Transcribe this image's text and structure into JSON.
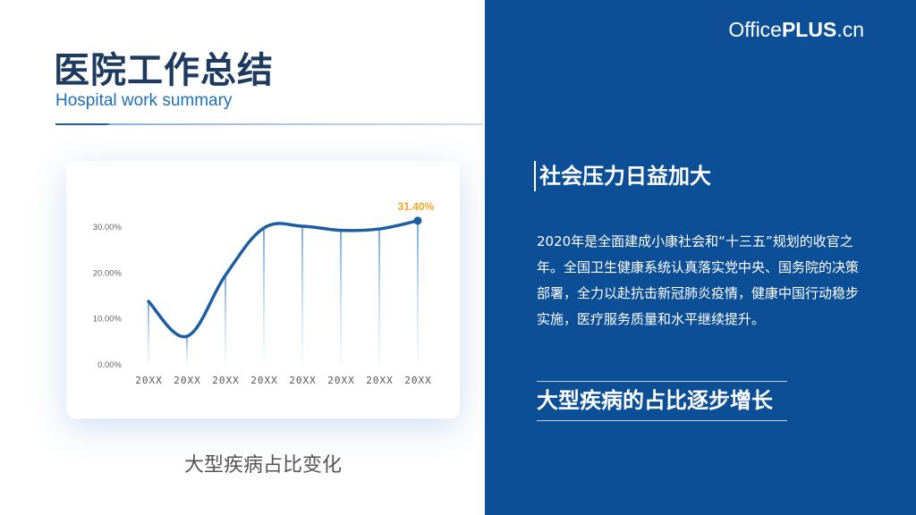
{
  "header": {
    "title": "医院工作总结",
    "subtitle": "Hospital work summary"
  },
  "brand": {
    "prefix": "Office",
    "bold": "PLUS",
    "suffix": ".cn"
  },
  "panel": {
    "heading1": "社会压力日益加大",
    "body": "2020年是全面建成小康社会和“十三五”规划的收官之年。全国卫生健康系统认真落实党中央、国务院的决策部署，全力以赴抗击新冠肺炎疫情，健康中国行动稳步实施，医疗服务质量和水平继续提升。",
    "heading2": "大型疾病的占比逐步增长"
  },
  "chart_caption": "大型疾病占比变化",
  "colors": {
    "panel_bg": "#0d4f97",
    "line": "#1d5ea3",
    "highlight": "#f5a623"
  },
  "chart_data": {
    "type": "line",
    "categories": [
      "20XX",
      "20XX",
      "20XX",
      "20XX",
      "20XX",
      "20XX",
      "20XX",
      "20XX"
    ],
    "values": [
      13.8,
      6.2,
      19.5,
      29.8,
      30.2,
      29.3,
      29.6,
      31.4
    ],
    "ylim": [
      0,
      30
    ],
    "yticks": [
      "0.00%",
      "10.00%",
      "20.00%",
      "30.00%"
    ],
    "highlight_label": "31.40%",
    "smooth": true,
    "grid": false,
    "title": "",
    "xlabel": "",
    "ylabel": ""
  }
}
